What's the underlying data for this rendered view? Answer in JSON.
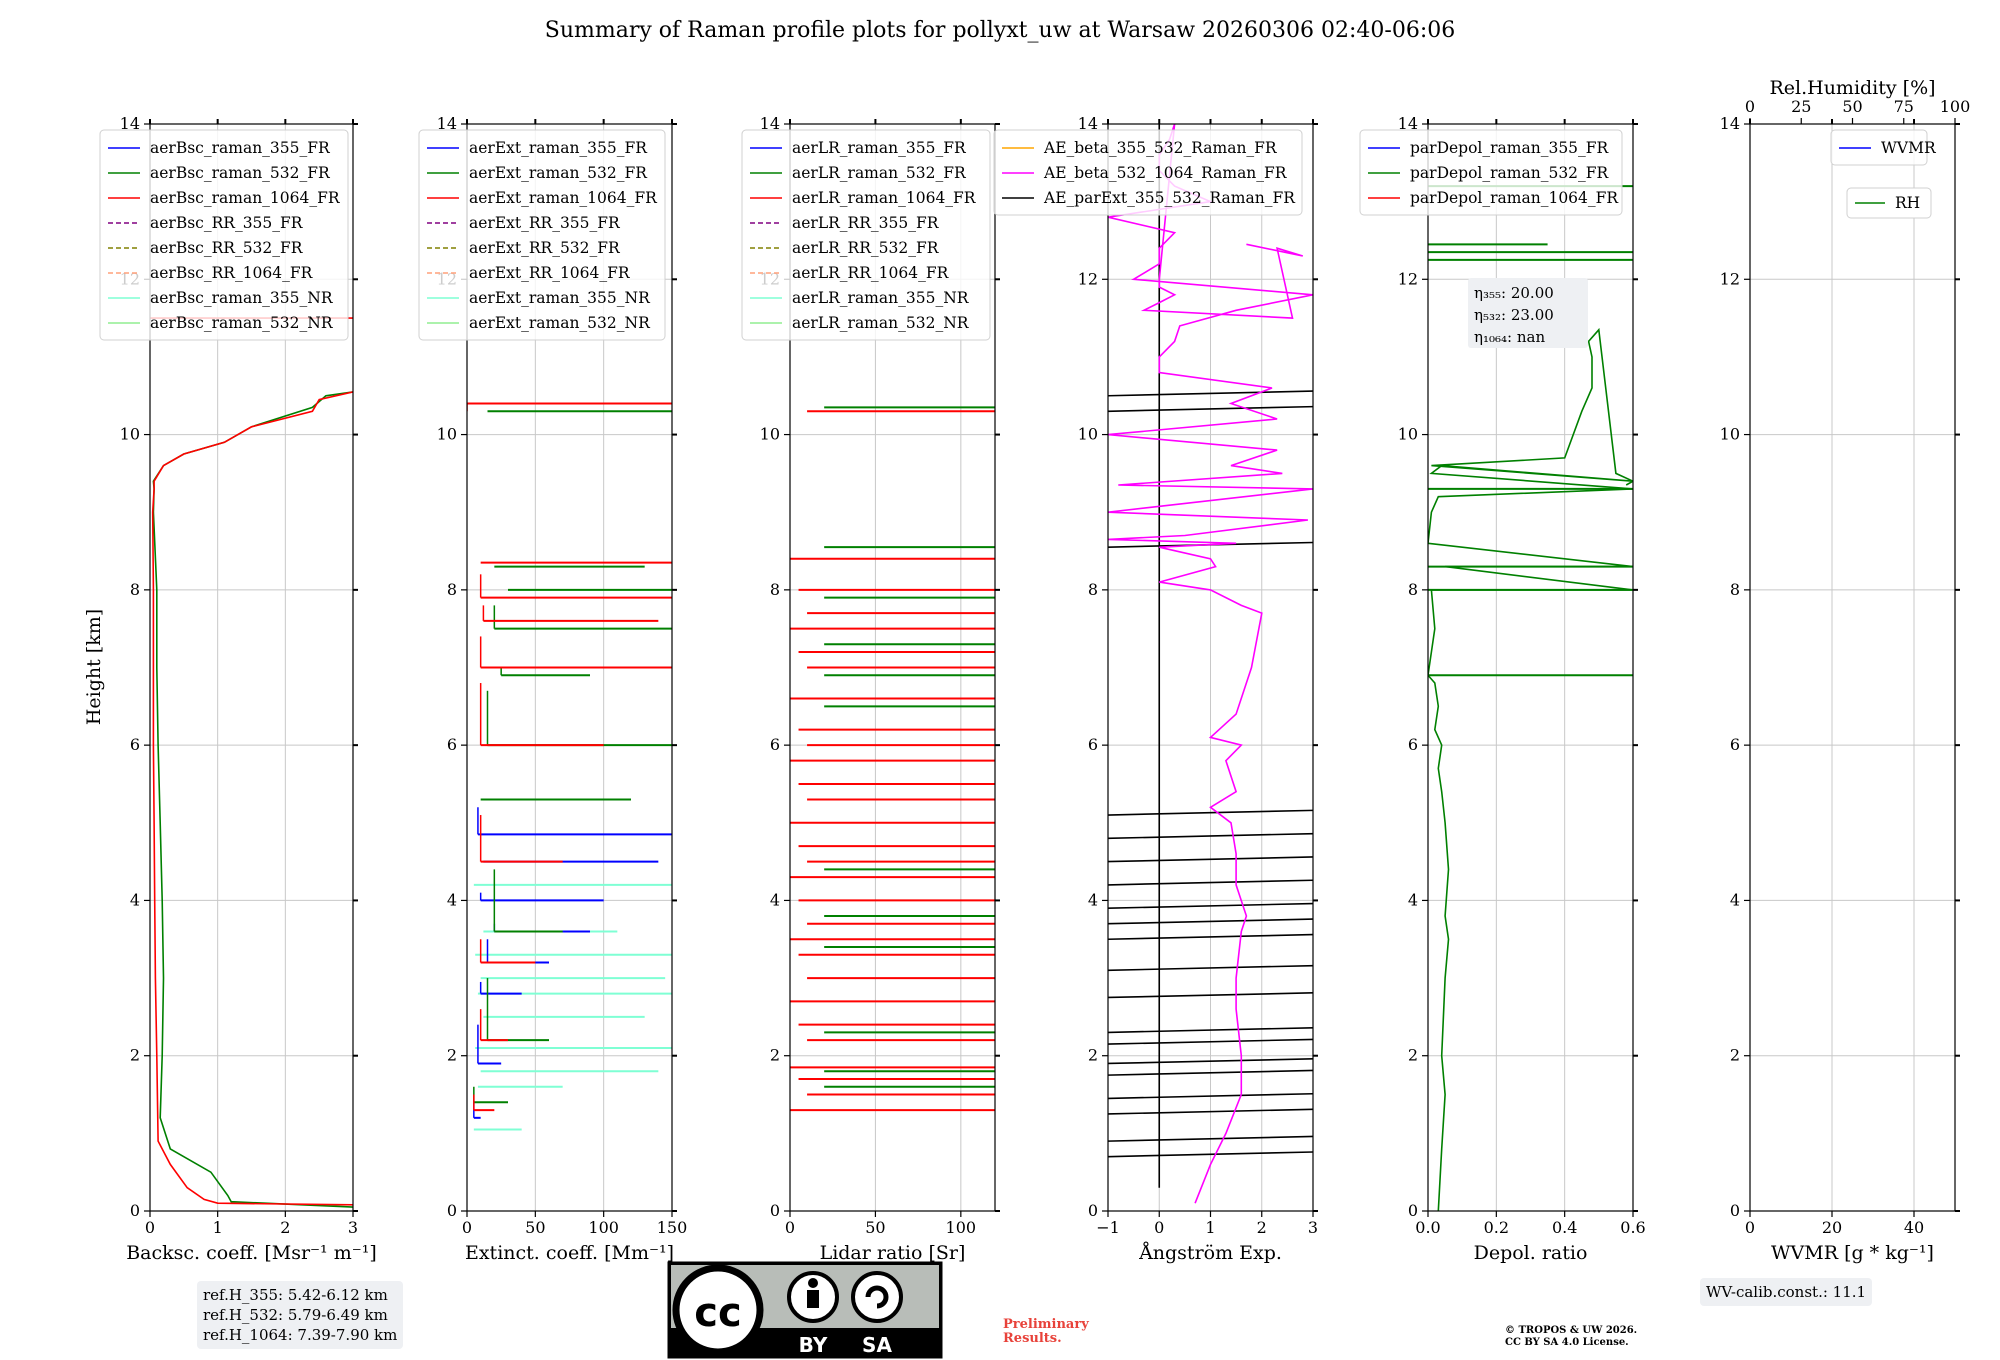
{
  "title": "Summary of Raman profile plots for pollyxt_uw at Warsaw 20260306 02:40-06:06",
  "ylabel": "Height [km]",
  "chart_data": [
    {
      "type": "line",
      "name": "backscatter",
      "xlabel": "Backsc. coeff. [Msr$^{-1}$ m$^{-1}$]",
      "xlabel_text": "Backsc. coeff. [Msr⁻¹ m⁻¹]",
      "xlim": [
        0,
        3
      ],
      "ylim": [
        0,
        14
      ],
      "xticks": [
        0,
        1,
        2,
        3
      ],
      "yticks": [
        0,
        2,
        4,
        6,
        8,
        10,
        12,
        14
      ],
      "legend": [
        "aerBsc_raman_355_FR",
        "aerBsc_raman_532_FR",
        "aerBsc_raman_1064_FR",
        "aerBsc_RR_355_FR",
        "aerBsc_RR_532_FR",
        "aerBsc_RR_1064_FR",
        "aerBsc_raman_355_NR",
        "aerBsc_raman_532_NR"
      ],
      "legend_colors": [
        "#0000ff",
        "#008000",
        "#ff0000",
        "#800080",
        "#808000",
        "#ffa07a",
        "#7fffd4",
        "#90ee90"
      ],
      "legend_dashed": [
        false,
        false,
        false,
        true,
        true,
        true,
        false,
        false
      ],
      "series": [
        {
          "name": "aerBsc_raman_532_FR",
          "color": "#008000",
          "x": [
            3.0,
            1.2,
            1.15,
            0.9,
            0.3,
            0.15,
            0.18,
            0.2,
            0.18,
            0.15,
            0.12,
            0.1,
            0.1,
            0.05,
            0.06,
            0.05,
            0.2,
            0.5,
            1.1,
            1.5,
            2.4,
            2.6,
            3.0
          ],
          "y": [
            0.05,
            0.12,
            0.2,
            0.5,
            0.8,
            1.2,
            2.0,
            3.0,
            4.0,
            5.0,
            6.0,
            7.0,
            8.0,
            9.0,
            9.3,
            9.4,
            9.6,
            9.75,
            9.9,
            10.1,
            10.35,
            10.5,
            10.55
          ]
        },
        {
          "name": "aerBsc_raman_1064_FR",
          "color": "#ff0000",
          "x": [
            3.0,
            1.0,
            0.8,
            0.55,
            0.3,
            0.12,
            0.1,
            0.08,
            0.07,
            0.06,
            0.05,
            0.05,
            0.05,
            0.04,
            0.06,
            0.06,
            0.2,
            0.5,
            1.1,
            1.5,
            2.4,
            2.5,
            3.0
          ],
          "y": [
            0.08,
            0.1,
            0.15,
            0.3,
            0.6,
            0.9,
            2.0,
            3.0,
            4.0,
            5.0,
            6.0,
            7.0,
            8.0,
            9.0,
            9.3,
            9.4,
            9.6,
            9.75,
            9.9,
            10.1,
            10.3,
            10.45,
            10.55
          ]
        },
        {
          "name": "aerBsc_raman_1064_FR_upper",
          "color": "#ff0000",
          "x": [
            0,
            3.0
          ],
          "y": [
            11.5,
            11.5
          ]
        }
      ]
    },
    {
      "type": "line",
      "name": "extinction",
      "xlabel_text": "Extinct. coeff. [Mm⁻¹]",
      "xlim": [
        0,
        150
      ],
      "ylim": [
        0,
        14
      ],
      "xticks": [
        0,
        50,
        100,
        150
      ],
      "yticks": [
        0,
        2,
        4,
        6,
        8,
        10,
        12,
        14
      ],
      "legend": [
        "aerExt_raman_355_FR",
        "aerExt_raman_532_FR",
        "aerExt_raman_1064_FR",
        "aerExt_RR_355_FR",
        "aerExt_RR_532_FR",
        "aerExt_RR_1064_FR",
        "aerExt_raman_355_NR",
        "aerExt_raman_532_NR"
      ],
      "legend_colors": [
        "#0000ff",
        "#008000",
        "#ff0000",
        "#800080",
        "#808000",
        "#ffa07a",
        "#7fffd4",
        "#90ee90"
      ],
      "legend_dashed": [
        false,
        false,
        false,
        true,
        true,
        true,
        false,
        false
      ],
      "series": [
        {
          "name": "aerExt_raman_355_NR",
          "color": "#7fffd4",
          "x": [
            5,
            40,
            8,
            70,
            10,
            140,
            6,
            150,
            12,
            130,
            8,
            150,
            10,
            145,
            6,
            150,
            12,
            110,
            5,
            150
          ],
          "y": [
            1.05,
            1.05,
            1.6,
            1.6,
            1.8,
            1.8,
            2.1,
            2.1,
            2.5,
            2.5,
            2.8,
            2.8,
            3.0,
            3.0,
            3.3,
            3.3,
            3.6,
            3.6,
            4.2,
            4.2
          ]
        },
        {
          "name": "aerExt_raman_355_FR",
          "color": "#0000ff",
          "x": [
            5,
            10,
            8,
            25,
            10,
            40,
            15,
            60,
            20,
            90,
            10,
            100,
            12,
            140,
            8,
            150
          ],
          "y": [
            1.2,
            1.4,
            1.9,
            2.4,
            2.8,
            2.95,
            3.2,
            3.5,
            3.6,
            3.7,
            4.0,
            4.1,
            4.5,
            4.5,
            4.85,
            5.2
          ]
        },
        {
          "name": "aerExt_raman_532_FR",
          "color": "#008000",
          "x": [
            5,
            30,
            15,
            60,
            20,
            70,
            10,
            120,
            15,
            150,
            25,
            90,
            20,
            150,
            30,
            150,
            20,
            130,
            15,
            150
          ],
          "y": [
            1.4,
            1.6,
            2.2,
            3.0,
            3.6,
            4.4,
            5.3,
            5.3,
            6.0,
            6.7,
            6.9,
            7.0,
            7.5,
            7.8,
            8.0,
            8.0,
            8.3,
            8.3,
            10.3,
            10.3
          ]
        },
        {
          "name": "aerExt_raman_1064_FR",
          "color": "#ff0000",
          "x": [
            5,
            20,
            10,
            30,
            10,
            50,
            10,
            70,
            10,
            100,
            10,
            150,
            12,
            140,
            10,
            150,
            10,
            150,
            0,
            150
          ],
          "y": [
            1.3,
            1.5,
            2.2,
            2.6,
            3.2,
            3.5,
            4.5,
            5.1,
            6.0,
            6.8,
            7.0,
            7.4,
            7.6,
            7.8,
            7.9,
            8.2,
            8.35,
            8.35,
            10.4,
            10.3
          ]
        }
      ]
    },
    {
      "type": "line",
      "name": "lidar_ratio",
      "xlabel_text": "Lidar ratio [Sr]",
      "xlim": [
        0,
        120
      ],
      "ylim": [
        0,
        14
      ],
      "xticks": [
        0,
        50,
        100
      ],
      "yticks": [
        0,
        2,
        4,
        6,
        8,
        10,
        12,
        14
      ],
      "legend": [
        "aerLR_raman_355_FR",
        "aerLR_raman_532_FR",
        "aerLR_raman_1064_FR",
        "aerLR_RR_355_FR",
        "aerLR_RR_532_FR",
        "aerLR_RR_1064_FR",
        "aerLR_raman_355_NR",
        "aerLR_raman_532_NR"
      ],
      "legend_colors": [
        "#0000ff",
        "#008000",
        "#ff0000",
        "#800080",
        "#808000",
        "#ffa07a",
        "#7fffd4",
        "#90ee90"
      ],
      "legend_dashed": [
        false,
        false,
        false,
        true,
        true,
        true,
        false,
        false
      ],
      "hlines_red": [
        1.3,
        1.5,
        1.7,
        1.85,
        2.2,
        2.4,
        2.7,
        3.0,
        3.3,
        3.5,
        3.7,
        4.0,
        4.3,
        4.5,
        4.7,
        5.0,
        5.3,
        5.5,
        5.8,
        6.0,
        6.2,
        6.6,
        7.0,
        7.2,
        7.5,
        7.7,
        8.0,
        8.4,
        10.3
      ],
      "hlines_green": [
        1.6,
        1.8,
        2.3,
        3.4,
        3.8,
        4.4,
        6.5,
        6.9,
        7.3,
        7.9,
        8.55,
        10.35
      ]
    },
    {
      "type": "line",
      "name": "angstrom",
      "xlabel_text": "Ångström Exp.",
      "xlim": [
        -1,
        3
      ],
      "ylim": [
        0,
        14
      ],
      "xticks": [
        -1,
        0,
        1,
        2,
        3
      ],
      "yticks": [
        0,
        2,
        4,
        6,
        8,
        10,
        12,
        14
      ],
      "legend": [
        "AE_beta_355_532_Raman_FR",
        "AE_beta_532_1064_Raman_FR",
        "AE_parExt_355_532_Raman_FR"
      ],
      "legend_colors": [
        "#ffa500",
        "#ff00ff",
        "#000000"
      ],
      "legend_dashed": [
        false,
        false,
        false
      ],
      "series": [
        {
          "name": "AE_beta_532_1064_Raman_FR",
          "color": "#ff00ff",
          "x": [
            0.7,
            1.0,
            1.3,
            1.6,
            1.6,
            1.5,
            1.5,
            1.6,
            1.7,
            1.5,
            1.5,
            1.4,
            1.0,
            1.5,
            1.3,
            1.6,
            1.0,
            1.5,
            1.8,
            2.0,
            1.6,
            1.0,
            0.0,
            1.1,
            1.0,
            0.0,
            1.5,
            -1.0,
            0.5,
            2.9,
            -1.0,
            3.0,
            -0.8,
            2.4,
            1.4,
            2.3,
            -1.0,
            2.3,
            1.4,
            2.2,
            0.0,
            0.0,
            0.3,
            0.4,
            1.5,
            3.0,
            -0.5,
            0.0,
            0.0,
            0.3,
            -1.0,
            1.0,
            0.3,
            0.0,
            0.0,
            0.2,
            0.3,
            0.0,
            0.0,
            0.3,
            0.0,
            -0.3,
            2.6,
            2.3,
            2.8,
            1.7,
            2.8
          ],
          "y": [
            0.1,
            0.6,
            1.0,
            1.5,
            2.0,
            2.6,
            3.0,
            3.6,
            3.8,
            4.2,
            4.6,
            5.0,
            5.2,
            5.4,
            5.8,
            6.0,
            6.1,
            6.4,
            7.0,
            7.7,
            7.8,
            8.0,
            8.1,
            8.3,
            8.4,
            8.55,
            8.6,
            8.65,
            8.7,
            8.9,
            9.0,
            9.3,
            9.35,
            9.5,
            9.6,
            9.8,
            10.0,
            10.2,
            10.4,
            10.6,
            10.8,
            11.0,
            11.2,
            11.4,
            11.6,
            11.8,
            12.0,
            12.2,
            12.4,
            12.6,
            12.8,
            13.0,
            13.2,
            13.4,
            13.6,
            13.8,
            14.0,
            12.0,
            11.9,
            11.8,
            11.7,
            11.6,
            11.5,
            12.4,
            12.3,
            12.45,
            12.3
          ]
        }
      ],
      "black_hlines": [
        0.7,
        0.9,
        1.25,
        1.45,
        1.75,
        1.9,
        2.15,
        2.3,
        2.75,
        3.1,
        3.5,
        3.7,
        3.9,
        4.2,
        4.5,
        4.8,
        5.1,
        8.55,
        10.3,
        10.5
      ],
      "black_vertical": [
        [
          0.0,
          0.3,
          14.0
        ]
      ]
    },
    {
      "type": "line",
      "name": "depol",
      "xlabel_text": "Depol. ratio",
      "xlim": [
        0.0,
        0.6
      ],
      "ylim": [
        0,
        14
      ],
      "xticks": [
        0.0,
        0.2,
        0.4,
        0.6
      ],
      "xtick_labels": [
        "0.0",
        "0.2",
        "0.4",
        "0.6"
      ],
      "yticks": [
        0,
        2,
        4,
        6,
        8,
        10,
        12,
        14
      ],
      "legend": [
        "parDepol_raman_355_FR",
        "parDepol_raman_532_FR",
        "parDepol_raman_1064_FR"
      ],
      "legend_colors": [
        "#0000ff",
        "#008000",
        "#ff0000"
      ],
      "legend_dashed": [
        false,
        false,
        false
      ],
      "eta_labels": [
        "η₃₅₅: 20.00",
        "η₅₃₂: 23.00",
        "η₁₀₆₄: nan"
      ],
      "series": [
        {
          "name": "parDepol_raman_532_FR",
          "color": "#008000",
          "x": [
            0.03,
            0.04,
            0.05,
            0.04,
            0.05,
            0.06,
            0.05,
            0.06,
            0.05,
            0.04,
            0.03,
            0.04,
            0.02,
            0.03,
            0.02,
            0.01,
            0.0,
            0.02,
            0.01,
            0.6,
            0.05,
            0.6,
            0.0,
            0.01,
            0.03,
            0.6,
            0.01,
            0.04,
            0.6,
            0.01,
            0.4,
            0.45,
            0.48,
            0.48,
            0.47,
            0.5,
            0.55,
            0.6,
            0.58
          ],
          "y": [
            0.0,
            0.8,
            1.5,
            2.0,
            3.0,
            3.5,
            3.8,
            4.4,
            5.0,
            5.4,
            5.7,
            6.0,
            6.2,
            6.5,
            6.8,
            6.85,
            6.9,
            7.5,
            8.0,
            8.0,
            8.3,
            8.3,
            8.6,
            9.0,
            9.2,
            9.3,
            9.5,
            9.6,
            9.4,
            9.6,
            9.7,
            10.3,
            10.6,
            11.0,
            11.2,
            11.35,
            9.5,
            9.4,
            9.35
          ]
        }
      ],
      "green_hlines": [
        [
          0.0,
          0.6,
          6.9
        ],
        [
          0.0,
          0.6,
          8.0
        ],
        [
          0.0,
          0.6,
          8.3
        ],
        [
          0.0,
          0.6,
          9.3
        ],
        [
          0.0,
          0.6,
          12.25
        ],
        [
          0.0,
          0.6,
          12.35
        ],
        [
          0.0,
          0.6,
          13.2
        ],
        [
          0.0,
          0.35,
          12.45
        ]
      ]
    },
    {
      "type": "line",
      "name": "wvmr",
      "xlabel_text": "WVMR [g * kg⁻¹]",
      "top_xlabel": "Rel.Humidity [%]",
      "xlim": [
        0,
        50
      ],
      "ylim": [
        0,
        14
      ],
      "xticks": [
        0,
        20,
        40
      ],
      "top_xticks": [
        0,
        25,
        50,
        75,
        100
      ],
      "yticks": [
        0,
        2,
        4,
        6,
        8,
        10,
        12,
        14
      ],
      "legend": [
        "WVMR"
      ],
      "legend2": [
        "RH"
      ],
      "legend_colors": [
        "#0000ff"
      ],
      "legend2_colors": [
        "#008000"
      ],
      "legend_dashed": [
        false
      ],
      "series": []
    }
  ],
  "refbox": [
    "ref.H_355: 5.42-6.12 km",
    "ref.H_532: 5.79-6.49 km",
    "ref.H_1064: 7.39-7.90 km"
  ],
  "wvcalib": "WV-calib.const.: 11.1",
  "preliminary": [
    "Preliminary",
    "Results."
  ],
  "copyright": [
    "© TROPOS & UW 2026.",
    "CC BY SA 4.0 License."
  ],
  "license_badge": [
    "BY",
    "SA"
  ]
}
